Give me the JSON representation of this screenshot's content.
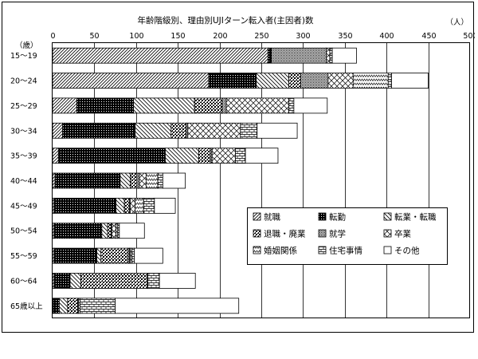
{
  "chart_data": {
    "type": "bar",
    "orientation": "horizontal",
    "stacked": true,
    "title": "年齢階級別、理由別UJIターン転入者(主因者)数",
    "unit_label": "（人）",
    "category_axis_label": "（歳）",
    "xlim": [
      0,
      500
    ],
    "x_ticks": [
      0,
      50,
      100,
      150,
      200,
      250,
      300,
      350,
      400,
      450,
      500
    ],
    "grid": true,
    "legend_position": "bottom-right",
    "categories": [
      "15～19",
      "20～24",
      "25～29",
      "30～34",
      "35～39",
      "40～44",
      "45～49",
      "50～54",
      "55～59",
      "60～64",
      "65歳以上"
    ],
    "series": [
      {
        "name": "就職",
        "values": [
          258,
          187,
          29,
          12,
          7,
          3,
          2,
          2,
          2,
          2,
          1
        ]
      },
      {
        "name": "転勤",
        "values": [
          4,
          57,
          68,
          87,
          128,
          78,
          74,
          57,
          51,
          19,
          7
        ]
      },
      {
        "name": "転業・転職",
        "values": [
          0,
          39,
          73,
          43,
          40,
          12,
          10,
          7,
          5,
          13,
          10
        ]
      },
      {
        "name": "退職・廃業",
        "values": [
          0,
          14,
          33,
          18,
          14,
          8,
          6,
          4,
          32,
          79,
          12
        ]
      },
      {
        "name": "就学",
        "values": [
          66,
          33,
          5,
          2,
          2,
          3,
          1,
          1,
          2,
          1,
          1
        ]
      },
      {
        "name": "卒業",
        "values": [
          4,
          30,
          75,
          63,
          28,
          8,
          6,
          5,
          1,
          0,
          2
        ]
      },
      {
        "name": "婚姻関係",
        "values": [
          0,
          42,
          0,
          0,
          0,
          14,
          10,
          2,
          2,
          0,
          0
        ]
      },
      {
        "name": "住宅事情",
        "values": [
          3,
          4,
          6,
          20,
          12,
          6,
          13,
          2,
          3,
          14,
          42
        ]
      },
      {
        "name": "その他",
        "values": [
          29,
          44,
          40,
          48,
          39,
          27,
          25,
          30,
          34,
          43,
          148
        ]
      }
    ]
  },
  "colors": {
    "stroke": "#000000",
    "grid": "#000000",
    "fill": "#ffffff",
    "dark": "#000000"
  },
  "legend_patterns": [
    "diag-right-fine",
    "dark-dotted",
    "diag-left",
    "checker",
    "dense-dots",
    "crosshatch",
    "zigzag",
    "brick",
    "empty"
  ]
}
